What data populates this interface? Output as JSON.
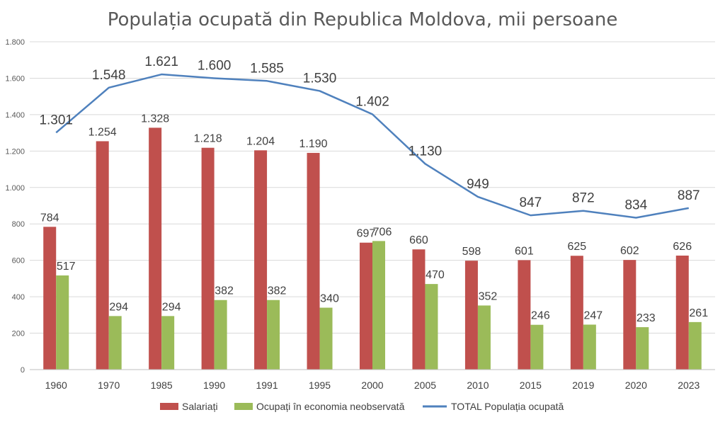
{
  "chart_data": {
    "type": "bar",
    "title": "Populația ocupată din Republica Moldova, mii persoane",
    "categories": [
      "1960",
      "1970",
      "1985",
      "1990",
      "1991",
      "1995",
      "2000",
      "2005",
      "2010",
      "2015",
      "2019",
      "2020",
      "2023"
    ],
    "ylim": [
      0,
      1800
    ],
    "yticks": [
      0,
      200,
      400,
      600,
      800,
      1000,
      1200,
      1400,
      1600,
      1800
    ],
    "ytick_labels": [
      "0",
      "200",
      "400",
      "600",
      "800",
      "1.000",
      "1.200",
      "1.400",
      "1.600",
      "1.800"
    ],
    "grid": true,
    "legend_position": "bottom",
    "series": [
      {
        "name": "Salariați",
        "type": "bar",
        "color": "#C0504D",
        "values": [
          784,
          1254,
          1328,
          1218,
          1204,
          1190,
          697,
          660,
          598,
          601,
          625,
          602,
          626
        ],
        "labels": [
          "784",
          "1.254",
          "1.328",
          "1.218",
          "1.204",
          "1.190",
          "697",
          "660",
          "598",
          "601",
          "625",
          "602",
          "626"
        ]
      },
      {
        "name": "Ocupați în economia neobservată",
        "type": "bar",
        "color": "#9BBB59",
        "values": [
          517,
          294,
          294,
          382,
          382,
          340,
          706,
          470,
          352,
          246,
          247,
          233,
          261
        ],
        "labels": [
          "517",
          "294",
          "294",
          "382",
          "382",
          "340",
          "706",
          "470",
          "352",
          "246",
          "247",
          "233",
          "261"
        ]
      },
      {
        "name": "TOTAL Populația ocupată",
        "type": "line",
        "color": "#4F81BD",
        "values": [
          1301,
          1548,
          1621,
          1600,
          1585,
          1530,
          1402,
          1130,
          949,
          847,
          872,
          834,
          887
        ],
        "labels": [
          "1.301",
          "1.548",
          "1.621",
          "1.600",
          "1.585",
          "1.530",
          "1.402",
          "1.130",
          "949",
          "847",
          "872",
          "834",
          "887"
        ]
      }
    ]
  }
}
